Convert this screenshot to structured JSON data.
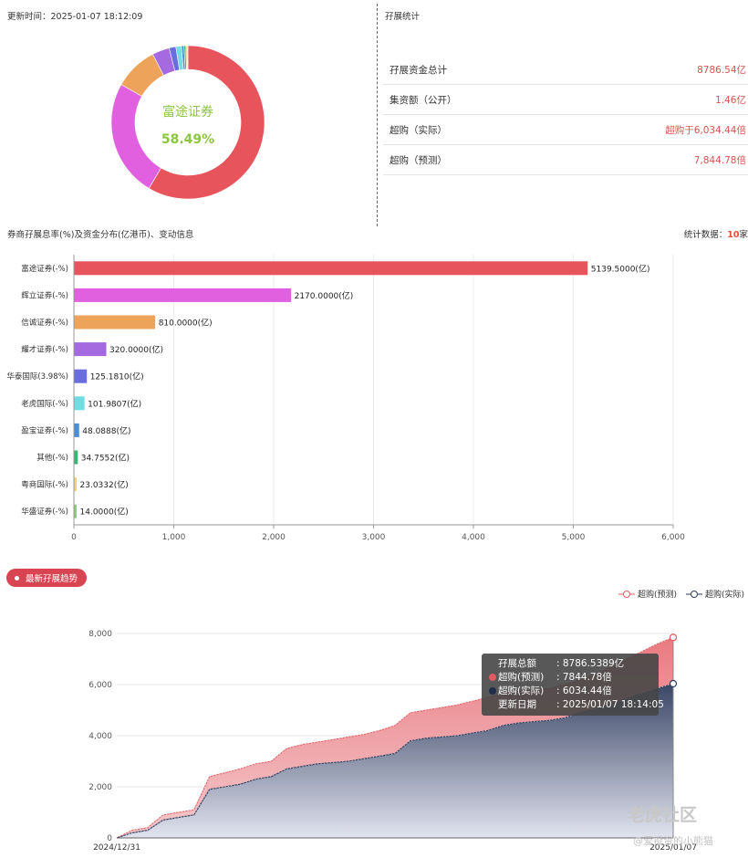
{
  "header": {
    "update_time": "更新时间：2025-01-07 18:12:09",
    "stats_title": "孖展统计"
  },
  "stats": [
    {
      "label": "孖展资金总计",
      "value": "8786.54亿"
    },
    {
      "label": "集资额（公开）",
      "value": "1.46亿"
    },
    {
      "label": "超购（实际）",
      "value": "超购于6,034.44倍"
    },
    {
      "label": "超购（预测）",
      "value": "7,844.78倍"
    }
  ],
  "donut": {
    "center_name": "富途证券",
    "center_pct": "58.49%"
  },
  "bar_section": {
    "title": "券商孖展息率(%)及资金分布(亿港币)、变动信息",
    "count_label": "统计数据：",
    "count_value": "10",
    "count_unit": "家"
  },
  "trend": {
    "badge": "最新孖展趋势",
    "tooltip": {
      "rows": [
        {
          "key": "孖展总额",
          "value": ": 8786.5389亿"
        },
        {
          "key": "超购(预测)",
          "value": ": 7844.78倍"
        },
        {
          "key": "超购(实际)",
          "value": ": 6034.44倍"
        },
        {
          "key": "更新日期",
          "value": ": 2025/01/07 18:14:05"
        }
      ]
    }
  },
  "watermark": {
    "main": "老虎社区",
    "sub": "@爱投资的小熊猫"
  },
  "colors": {
    "futu": "#e8545b",
    "huili": "#e160e0",
    "xincheng": "#eda45a",
    "yaocai": "#a56ae0",
    "huatai": "#6a6ddf",
    "laohu": "#72dce3",
    "yingbao": "#4a8fd6",
    "qita": "#3cb371",
    "yueshang": "#f0d27a",
    "huasheng": "#8fcf6b",
    "forecast": "#e05c62",
    "actual": "#2c3a5a",
    "accent_red": "#d9534f"
  },
  "chart_data": [
    {
      "type": "pie",
      "categories": [
        "富途证券",
        "辉立证券",
        "信诚证券",
        "耀才证券",
        "华泰国际",
        "老虎国际",
        "盈宝证券",
        "其他",
        "粤商国际",
        "华盛证券"
      ],
      "values": [
        5139.5,
        2170.0,
        810.0,
        320.0,
        125.181,
        101.9807,
        48.0888,
        34.7552,
        23.0332,
        14.0
      ]
    },
    {
      "type": "bar",
      "orientation": "horizontal",
      "categories": [
        "富途证券(-%)",
        "辉立证券(-%)",
        "信诚证券(-%)",
        "耀才证券(-%)",
        "华泰国际(3.98%)",
        "老虎国际(-%)",
        "盈宝证券(-%)",
        "其他(-%)",
        "粤商国际(-%)",
        "华盛证券(-%)"
      ],
      "values": [
        5139.5,
        2170.0,
        810.0,
        320.0,
        125.181,
        101.9807,
        48.0888,
        34.7552,
        23.0332,
        14.0
      ],
      "data_labels": [
        "5139.5000(亿)",
        "2170.0000(亿)",
        "810.0000(亿)",
        "320.0000(亿)",
        "125.1810(亿)",
        "101.9807(亿)",
        "48.0888(亿)",
        "34.7552(亿)",
        "23.0332(亿)",
        "14.0000(亿)"
      ],
      "xlim": [
        0,
        6000
      ],
      "xticks": [
        0,
        1000,
        2000,
        3000,
        4000,
        5000,
        6000
      ],
      "xtick_labels": [
        "0",
        "1,000",
        "2,000",
        "3,000",
        "4,000",
        "5,000",
        "6,000"
      ],
      "grid": true
    },
    {
      "type": "area",
      "x_labels": [
        "2024/12/31",
        "2025/01/07"
      ],
      "ylim": [
        0,
        8000
      ],
      "yticks": [
        0,
        2000,
        4000,
        6000,
        8000
      ],
      "ytick_labels": [
        "0",
        "2,000",
        "4,000",
        "6,000",
        "8,000"
      ],
      "legend_position": "top-right",
      "series": [
        {
          "name": "超购(预测)",
          "values": [
            0,
            300,
            400,
            900,
            1000,
            1100,
            2400,
            2550,
            2700,
            2900,
            3000,
            3500,
            3650,
            3750,
            3850,
            3950,
            4050,
            4200,
            4400,
            4900,
            5000,
            5100,
            5200,
            5350,
            5500,
            5650,
            5750,
            5800,
            5850,
            6000,
            6200,
            6400,
            6700,
            7000,
            7300,
            7600,
            7844.78
          ]
        },
        {
          "name": "超购(实际)",
          "values": [
            0,
            200,
            300,
            700,
            800,
            900,
            1900,
            2000,
            2100,
            2300,
            2400,
            2700,
            2800,
            2900,
            2950,
            3000,
            3100,
            3200,
            3300,
            3800,
            3900,
            3950,
            4000,
            4100,
            4200,
            4400,
            4500,
            4550,
            4600,
            4700,
            4900,
            5050,
            5250,
            5450,
            5650,
            5850,
            6034.44
          ]
        }
      ]
    }
  ]
}
